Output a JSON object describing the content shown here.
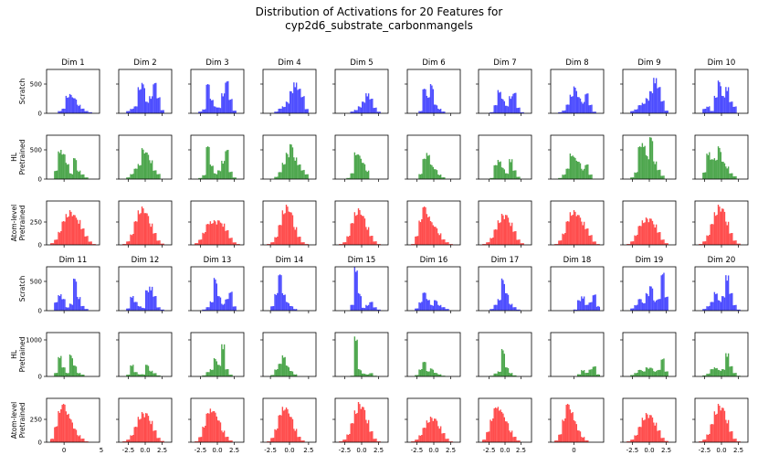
{
  "title_line1": "Distribution of Activations for 20 Features for",
  "title_line2": "cyp2d6_substrate_carbonmangels",
  "chart_data": {
    "type": "histogram-grid",
    "title": "Distribution of Activations for 20 Features for cyp2d6_substrate_carbonmangels",
    "grid": "off",
    "columns": [
      "Dim 1",
      "Dim 2",
      "Dim 3",
      "Dim 4",
      "Dim 5",
      "Dim 6",
      "Dim 7",
      "Dim 8",
      "Dim 9",
      "Dim 10",
      "Dim 11",
      "Dim 12",
      "Dim 13",
      "Dim 14",
      "Dim 15",
      "Dim 16",
      "Dim 17",
      "Dim 18",
      "Dim 19",
      "Dim 20"
    ],
    "rows": [
      {
        "label": "Scratch",
        "color": "#0000ff"
      },
      {
        "label": "HL Pretrained",
        "color": "#008000"
      },
      {
        "label": "Atom-level Pretrained",
        "color": "#ff0000"
      }
    ],
    "y_ticks": {
      "block1": {
        "Scratch": [
          0,
          500
        ],
        "HL Pretrained": [
          0,
          500
        ],
        "Atom-level Pretrained": [
          0,
          250
        ]
      },
      "block2": {
        "Scratch": [
          0,
          500
        ],
        "HL Pretrained": [
          0,
          1000
        ],
        "Atom-level Pretrained": [
          0,
          250
        ]
      }
    },
    "ylim": {
      "block1": {
        "Scratch": [
          0,
          750
        ],
        "HL Pretrained": [
          0,
          750
        ],
        "Atom-level Pretrained": [
          0,
          480
        ]
      },
      "block2": {
        "Scratch": [
          0,
          750
        ],
        "HL Pretrained": [
          0,
          1200
        ],
        "Atom-level Pretrained": [
          0,
          480
        ]
      }
    },
    "x_tick_labels": [
      [
        "0",
        "5"
      ],
      [
        "-2.5",
        "0.0",
        "2.5"
      ],
      [
        "-2.5",
        "0.0",
        "2.5"
      ],
      [
        "-2.5",
        "0.0",
        "2.5"
      ],
      [
        "-2.5",
        "0.0",
        "2.5"
      ],
      [
        "-2.5",
        "0.0",
        "2.5"
      ],
      [
        "-2.5",
        "0.0",
        "2.5"
      ],
      [
        "0"
      ],
      [
        "-2.5",
        "0.0",
        "2.5"
      ],
      [
        "-2.5",
        "0.0",
        "2.5"
      ]
    ],
    "histograms": {
      "block1": {
        "Scratch": [
          [
            0,
            0,
            40,
            80,
            300,
            330,
            260,
            150,
            80,
            40,
            20,
            0
          ],
          [
            0,
            40,
            80,
            120,
            450,
            520,
            200,
            300,
            520,
            280,
            60,
            0
          ],
          [
            0,
            30,
            70,
            500,
            250,
            120,
            100,
            350,
            550,
            250,
            50,
            0
          ],
          [
            0,
            0,
            30,
            80,
            120,
            200,
            380,
            540,
            420,
            300,
            80,
            0
          ],
          [
            0,
            0,
            0,
            30,
            60,
            120,
            200,
            350,
            250,
            100,
            30,
            0
          ],
          [
            0,
            0,
            40,
            420,
            300,
            500,
            150,
            80,
            30,
            0,
            0,
            0
          ],
          [
            0,
            0,
            20,
            140,
            400,
            250,
            130,
            300,
            350,
            100,
            20,
            0
          ],
          [
            0,
            20,
            50,
            150,
            320,
            460,
            280,
            200,
            340,
            150,
            30,
            0
          ],
          [
            0,
            40,
            70,
            140,
            180,
            260,
            380,
            620,
            450,
            220,
            50,
            0
          ],
          [
            0,
            80,
            120,
            40,
            300,
            560,
            300,
            460,
            200,
            120,
            0,
            0
          ]
        ],
        "HL Pretrained": [
          [
            0,
            150,
            500,
            430,
            280,
            100,
            360,
            150,
            80,
            30,
            0,
            0
          ],
          [
            0,
            30,
            90,
            180,
            260,
            530,
            460,
            330,
            150,
            90,
            0,
            0
          ],
          [
            0,
            20,
            70,
            560,
            250,
            100,
            150,
            320,
            500,
            130,
            30,
            0
          ],
          [
            0,
            0,
            40,
            120,
            280,
            450,
            600,
            380,
            250,
            160,
            90,
            0
          ],
          [
            0,
            0,
            20,
            100,
            460,
            420,
            280,
            150,
            0,
            0,
            0,
            0
          ],
          [
            0,
            0,
            90,
            350,
            450,
            250,
            170,
            80,
            30,
            0,
            0,
            0
          ],
          [
            0,
            0,
            20,
            240,
            330,
            200,
            100,
            350,
            150,
            40,
            0,
            0
          ],
          [
            0,
            20,
            80,
            180,
            440,
            380,
            300,
            180,
            250,
            80,
            0,
            0
          ],
          [
            0,
            30,
            120,
            560,
            620,
            410,
            720,
            310,
            160,
            60,
            0,
            0
          ],
          [
            0,
            120,
            460,
            340,
            360,
            560,
            300,
            220,
            100,
            50,
            0,
            0
          ]
        ],
        "Atom-level Pretrained": [
          [
            20,
            60,
            150,
            260,
            340,
            380,
            330,
            280,
            180,
            100,
            40,
            10
          ],
          [
            10,
            40,
            120,
            260,
            380,
            420,
            350,
            240,
            130,
            50,
            15,
            0
          ],
          [
            20,
            60,
            140,
            230,
            260,
            270,
            270,
            240,
            160,
            80,
            30,
            10
          ],
          [
            10,
            30,
            90,
            220,
            380,
            440,
            360,
            200,
            90,
            30,
            10,
            0
          ],
          [
            10,
            30,
            100,
            240,
            360,
            400,
            320,
            200,
            100,
            40,
            10,
            0
          ],
          [
            10,
            100,
            280,
            420,
            340,
            260,
            200,
            130,
            60,
            30,
            10,
            0
          ],
          [
            10,
            30,
            80,
            170,
            270,
            340,
            330,
            250,
            150,
            60,
            20,
            0
          ],
          [
            10,
            50,
            130,
            260,
            360,
            380,
            330,
            260,
            180,
            110,
            40,
            10
          ],
          [
            10,
            40,
            110,
            210,
            270,
            300,
            290,
            230,
            140,
            60,
            20,
            0
          ],
          [
            10,
            40,
            110,
            230,
            360,
            440,
            400,
            260,
            130,
            50,
            15,
            0
          ]
        ]
      },
      "block2": {
        "Scratch": [
          [
            0,
            150,
            280,
            200,
            60,
            120,
            550,
            240,
            80,
            30,
            0,
            0
          ],
          [
            0,
            40,
            250,
            150,
            80,
            50,
            350,
            420,
            250,
            60,
            20,
            0
          ],
          [
            0,
            0,
            20,
            60,
            160,
            560,
            250,
            120,
            200,
            330,
            80,
            0
          ],
          [
            0,
            80,
            300,
            620,
            300,
            150,
            80,
            30,
            0,
            0,
            0,
            0
          ],
          [
            0,
            0,
            0,
            100,
            750,
            300,
            50,
            100,
            150,
            60,
            20,
            0
          ],
          [
            0,
            40,
            150,
            310,
            200,
            100,
            180,
            100,
            60,
            30,
            0,
            0
          ],
          [
            0,
            0,
            30,
            100,
            200,
            550,
            300,
            120,
            60,
            20,
            0,
            0
          ],
          [
            0,
            0,
            0,
            0,
            0,
            20,
            180,
            250,
            100,
            150,
            300,
            80
          ],
          [
            0,
            40,
            100,
            200,
            140,
            300,
            420,
            180,
            200,
            660,
            260,
            0
          ],
          [
            0,
            30,
            80,
            150,
            320,
            180,
            250,
            620,
            300,
            100,
            20,
            0
          ]
        ],
        "HL Pretrained": [
          [
            0,
            100,
            560,
            250,
            100,
            600,
            300,
            100,
            50,
            0,
            0,
            0
          ],
          [
            0,
            50,
            320,
            120,
            60,
            60,
            320,
            160,
            90,
            30,
            0,
            0
          ],
          [
            0,
            0,
            30,
            120,
            200,
            500,
            320,
            900,
            200,
            50,
            0,
            0
          ],
          [
            0,
            40,
            200,
            350,
            580,
            300,
            150,
            60,
            0,
            0,
            0,
            0
          ],
          [
            0,
            0,
            0,
            20,
            1100,
            200,
            80,
            60,
            90,
            20,
            0,
            0
          ],
          [
            0,
            40,
            200,
            400,
            150,
            220,
            100,
            60,
            20,
            0,
            0,
            0
          ],
          [
            0,
            0,
            20,
            80,
            140,
            750,
            250,
            100,
            30,
            0,
            0,
            0
          ],
          [
            0,
            0,
            0,
            0,
            0,
            0,
            60,
            180,
            100,
            200,
            300,
            60
          ],
          [
            0,
            40,
            100,
            180,
            150,
            250,
            240,
            150,
            180,
            500,
            150,
            0
          ],
          [
            0,
            30,
            80,
            200,
            250,
            180,
            200,
            650,
            280,
            100,
            20,
            0
          ]
        ],
        "Atom-level Pretrained": [
          [
            40,
            180,
            360,
            420,
            340,
            260,
            150,
            80,
            40,
            10,
            0,
            0
          ],
          [
            10,
            30,
            80,
            170,
            280,
            330,
            320,
            240,
            130,
            50,
            15,
            0
          ],
          [
            10,
            60,
            180,
            320,
            370,
            340,
            240,
            130,
            60,
            20,
            0,
            0
          ],
          [
            10,
            50,
            150,
            300,
            390,
            380,
            280,
            150,
            60,
            20,
            0,
            0
          ],
          [
            10,
            30,
            90,
            210,
            350,
            440,
            390,
            250,
            120,
            40,
            10,
            0
          ],
          [
            10,
            30,
            80,
            160,
            240,
            280,
            260,
            180,
            100,
            40,
            10,
            0
          ],
          [
            30,
            120,
            260,
            380,
            390,
            330,
            230,
            130,
            60,
            20,
            0,
            0
          ],
          [
            20,
            90,
            260,
            420,
            360,
            240,
            130,
            60,
            20,
            0,
            0,
            0
          ],
          [
            10,
            30,
            80,
            170,
            270,
            320,
            300,
            220,
            130,
            50,
            15,
            0
          ],
          [
            10,
            30,
            90,
            200,
            340,
            420,
            380,
            250,
            120,
            40,
            10,
            0
          ]
        ]
      }
    }
  }
}
